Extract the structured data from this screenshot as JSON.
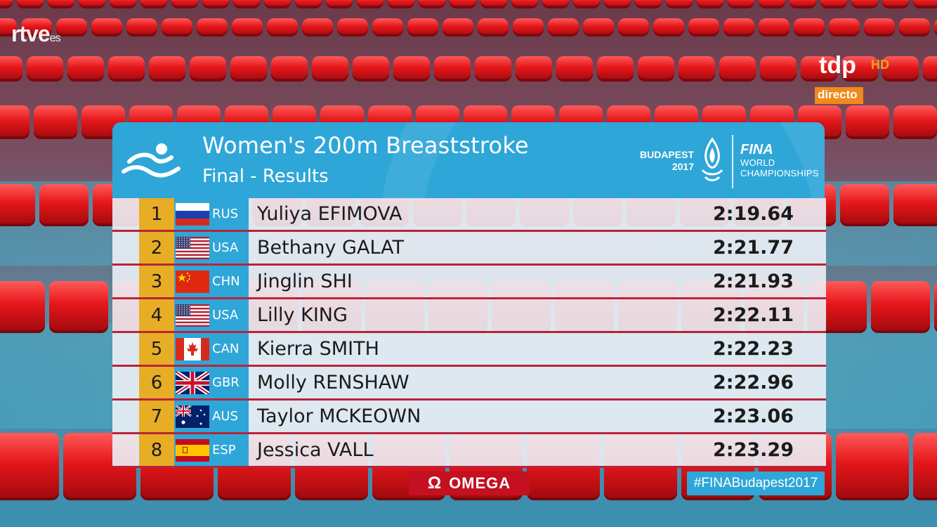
{
  "broadcast": {
    "channel_logo": "rtve",
    "channel_logo_suffix": "es",
    "corner_logo": "tdp",
    "corner_logo_hd": "HD",
    "live_label": "directo"
  },
  "event": {
    "title": "Women's 200m Breaststroke",
    "subtitle": "Final - Results",
    "venue_line1": "BUDAPEST",
    "venue_line2": "2017",
    "org_name": "FINA",
    "org_line1": "WORLD",
    "org_line2": "CHAMPIONSHIPS",
    "icons": [
      "swimmer-icon",
      "budapest-flame-icon"
    ]
  },
  "results": [
    {
      "rank": "1",
      "flag": "RUS",
      "code": "RUS",
      "name": "Yuliya EFIMOVA",
      "time": "2:19.64"
    },
    {
      "rank": "2",
      "flag": "USA",
      "code": "USA",
      "name": "Bethany GALAT",
      "time": "2:21.77"
    },
    {
      "rank": "3",
      "flag": "CHN",
      "code": "CHN",
      "name": "Jinglin SHI",
      "time": "2:21.93"
    },
    {
      "rank": "4",
      "flag": "USA",
      "code": "USA",
      "name": "Lilly KING",
      "time": "2:22.11"
    },
    {
      "rank": "5",
      "flag": "CAN",
      "code": "CAN",
      "name": "Kierra SMITH",
      "time": "2:22.23"
    },
    {
      "rank": "6",
      "flag": "GBR",
      "code": "GBR",
      "name": "Molly RENSHAW",
      "time": "2:22.96"
    },
    {
      "rank": "7",
      "flag": "AUS",
      "code": "AUS",
      "name": "Taylor MCKEOWN",
      "time": "2:23.06"
    },
    {
      "rank": "8",
      "flag": "ESP",
      "code": "ESP",
      "name": "Jessica VALL",
      "time": "2:23.29"
    }
  ],
  "footer": {
    "sponsor_symbol": "Ω",
    "sponsor": "OMEGA",
    "hashtag": "#FINABudapest2017"
  },
  "colors": {
    "header_blue": "#2fa6d8",
    "rank_gold": "#e7ad24",
    "row_divider": "#b8243a",
    "sponsor_red": "#c41020",
    "lane_rope_red": "#e4161a"
  }
}
